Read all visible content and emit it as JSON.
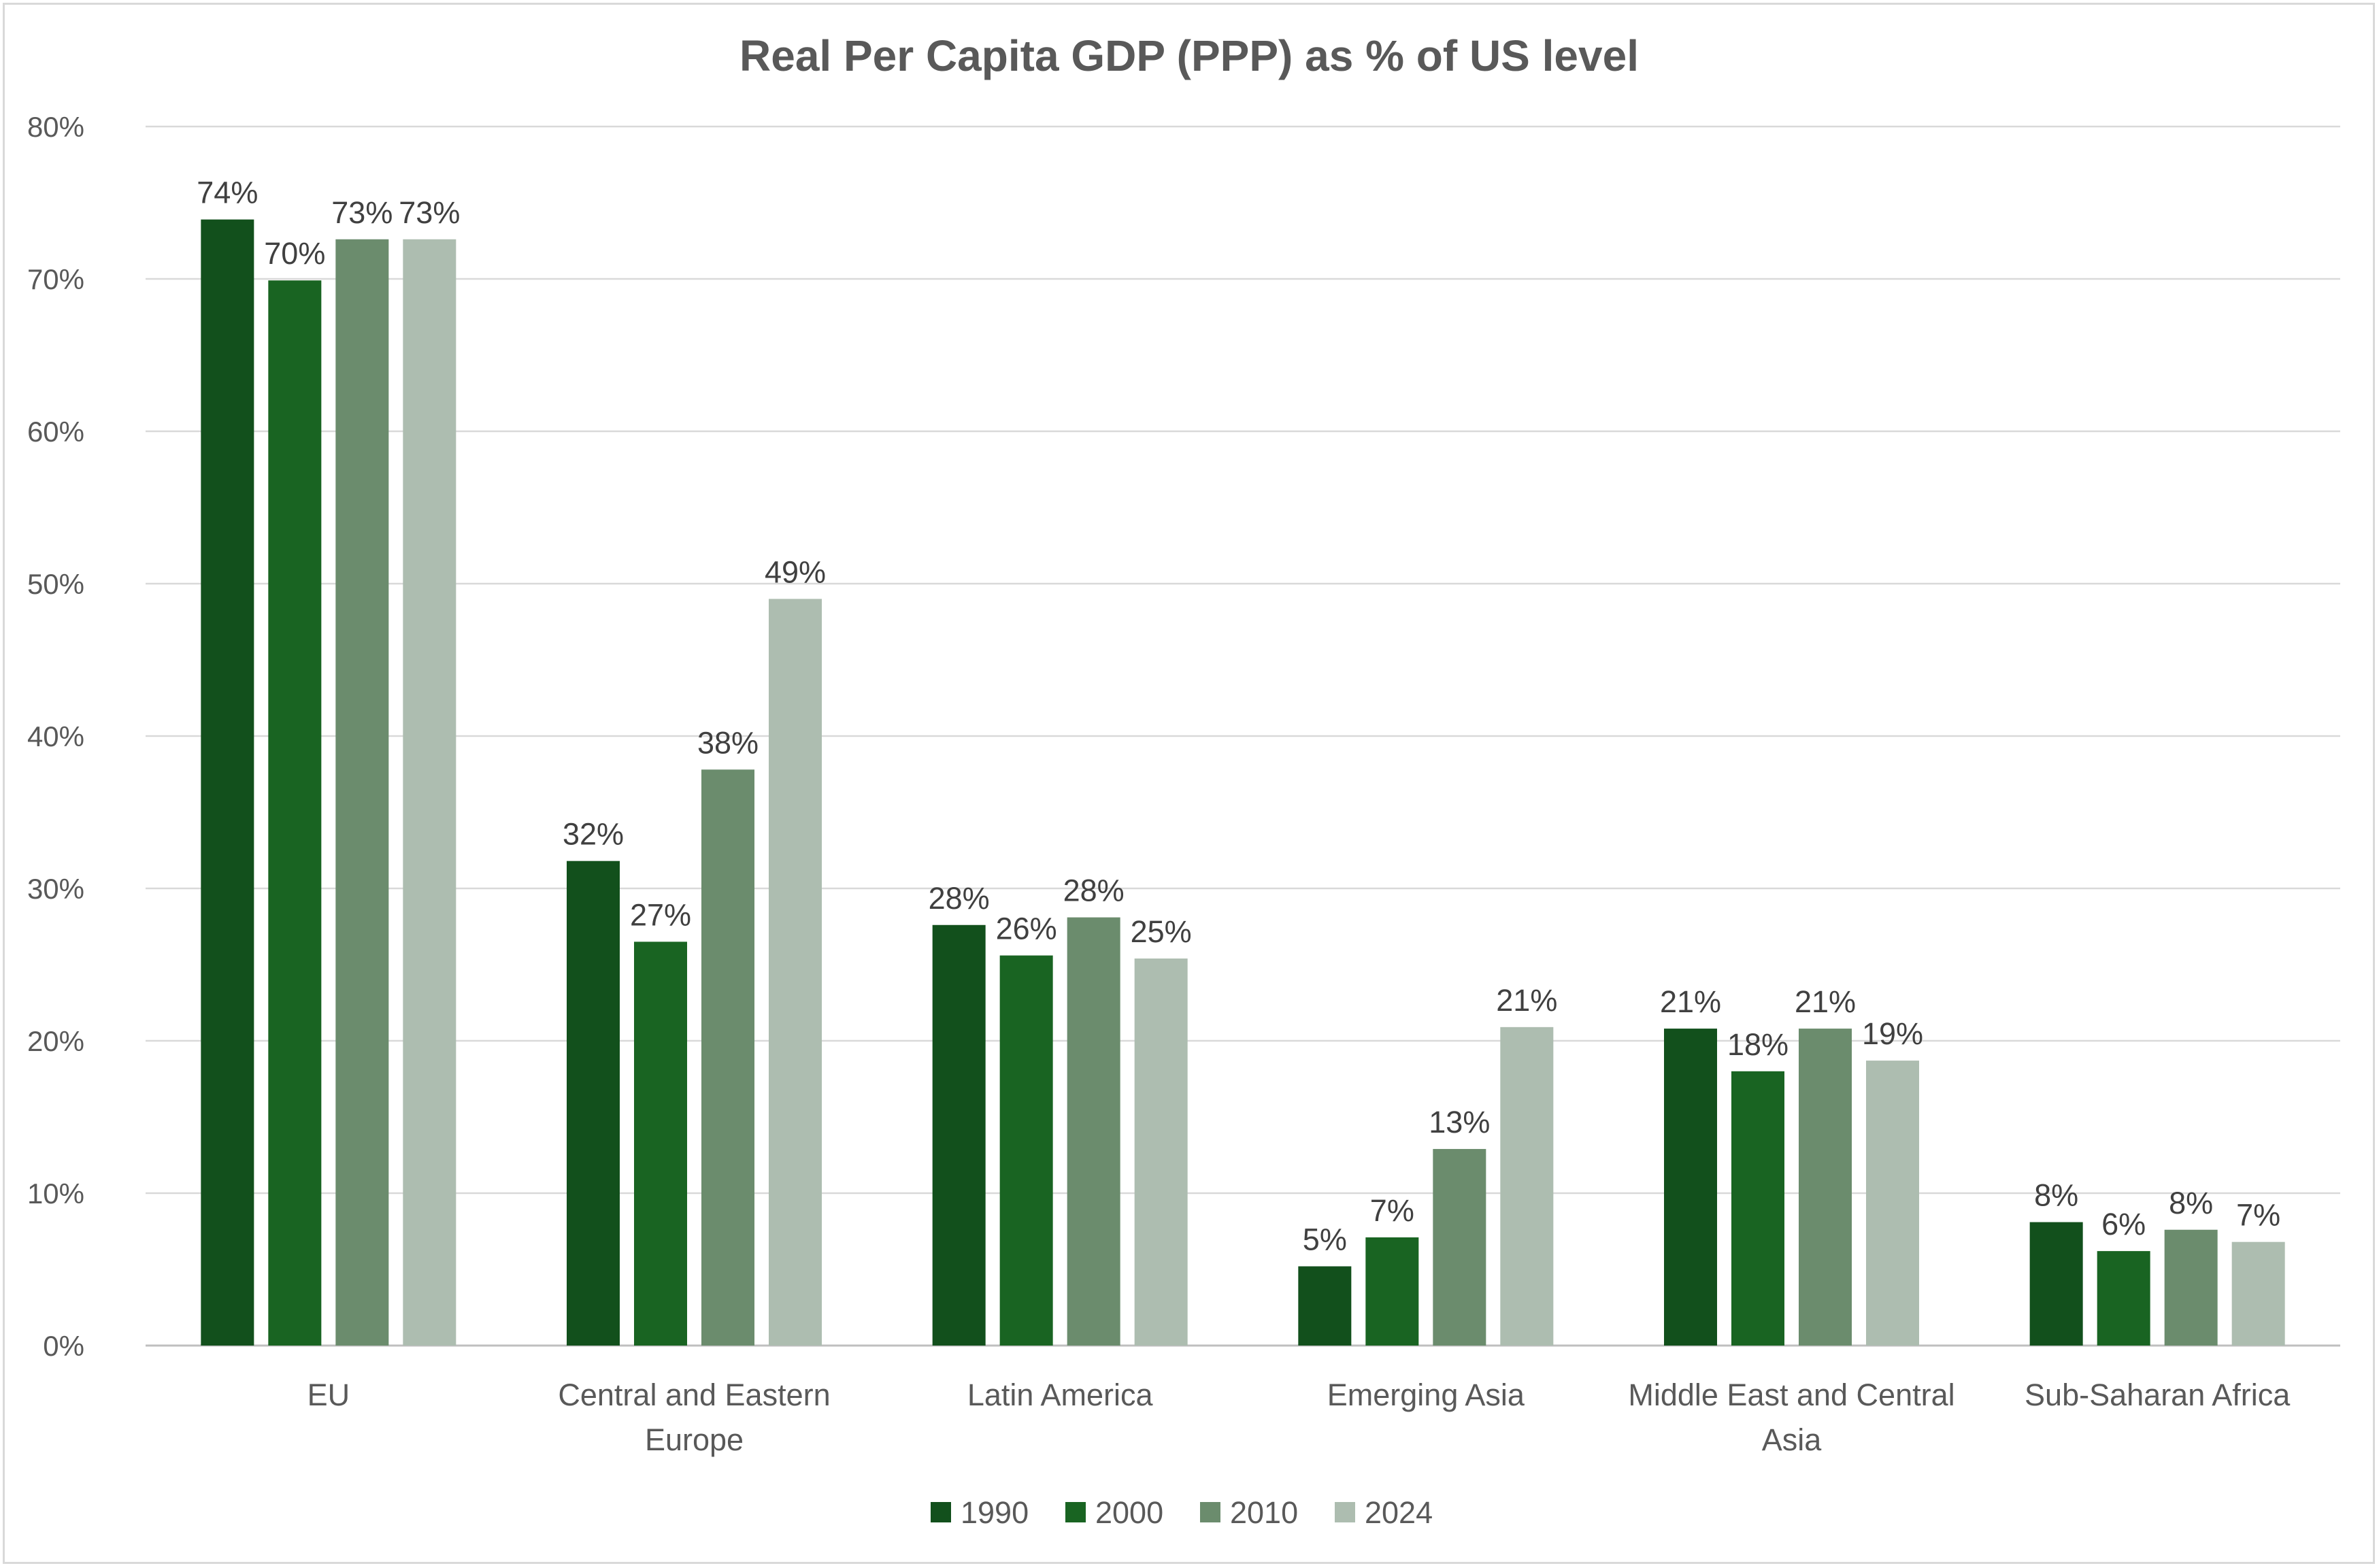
{
  "chart_data": {
    "type": "bar",
    "title": "Real Per Capita GDP (PPP) as % of US level",
    "xlabel": "",
    "ylabel": "",
    "ylim": [
      0,
      80
    ],
    "y_ticks": [
      "0%",
      "10%",
      "20%",
      "30%",
      "40%",
      "50%",
      "60%",
      "70%",
      "80%"
    ],
    "y_tick_values": [
      0,
      10,
      20,
      30,
      40,
      50,
      60,
      70,
      80
    ],
    "categories": [
      [
        "EU"
      ],
      [
        "Central and Eastern",
        "Europe"
      ],
      [
        "Latin America"
      ],
      [
        "Emerging  Asia"
      ],
      [
        "Middle East and Central",
        "Asia"
      ],
      [
        "Sub-Saharan Africa"
      ]
    ],
    "series": [
      {
        "name": "1990",
        "color": "#12501c",
        "values": [
          73.9,
          31.8,
          27.6,
          5.2,
          20.8,
          8.1
        ],
        "labels": [
          "74%",
          "32%",
          "28%",
          "5%",
          "21%",
          "8%"
        ]
      },
      {
        "name": "2000",
        "color": "#196422",
        "values": [
          69.9,
          26.5,
          25.6,
          7.1,
          18.0,
          6.2
        ],
        "labels": [
          "70%",
          "27%",
          "26%",
          "7%",
          "18%",
          "6%"
        ]
      },
      {
        "name": "2010",
        "color": "#6b8c6d",
        "values": [
          72.6,
          37.8,
          28.1,
          12.9,
          20.8,
          7.6
        ],
        "labels": [
          "73%",
          "38%",
          "28%",
          "13%",
          "21%",
          "8%"
        ]
      },
      {
        "name": "2024",
        "color": "#adbdb0",
        "values": [
          72.6,
          49.0,
          25.4,
          20.9,
          18.7,
          6.8
        ],
        "labels": [
          "73%",
          "49%",
          "25%",
          "21%",
          "19%",
          "7%"
        ]
      }
    ],
    "grid": true,
    "legend_position": "bottom"
  }
}
